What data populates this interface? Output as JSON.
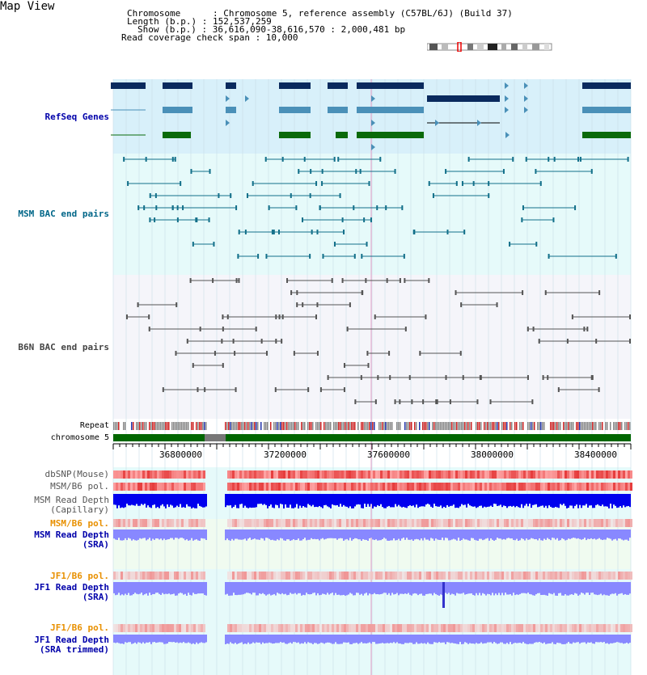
{
  "app": {
    "title": "Map View"
  },
  "header": {
    "lines": [
      "Chromosome      : Chromosome 5, reference assembly (C57BL/6J) (Build 37)",
      "Length (b.p.) : 152,537,259",
      "Show (b.p.) : 36,616,090-38,616,570 : 2,000,481 bp",
      "Read coverage check span : 10,000"
    ]
  },
  "tracks": {
    "refseq": {
      "label": "RefSeq Genes",
      "color": "#0000aa"
    },
    "msm_bac": {
      "label": "MSM BAC end pairs",
      "color": "#006688"
    },
    "b6n_bac": {
      "label": "B6N BAC end pairs",
      "color": "#444444"
    },
    "repeat": {
      "label": "Repeat"
    },
    "chromosome": {
      "label": "chromosome 5"
    },
    "dbsnp": {
      "label": "dbSNP(Mouse)"
    },
    "msm_b6_pol": {
      "label": "MSM/B6 pol."
    },
    "msm_depth_cap": {
      "label": "MSM Read Depth\n(Capillary)"
    },
    "msm_b6_pol_sra": {
      "label": "MSM/B6 pol."
    },
    "msm_depth_sra": {
      "label": "MSM Read Depth\n(SRA)"
    },
    "jf1_b6_pol": {
      "label": "JF1/B6 pol."
    },
    "jf1_depth_sra": {
      "label": "JF1 Read Depth\n(SRA)"
    },
    "jf1_b6_pol_trim": {
      "label": "JF1/B6 pol."
    },
    "jf1_depth_trim": {
      "label": "JF1 Read Depth\n(SRA trimmed)"
    }
  },
  "axis": {
    "ticks": [
      "36800000",
      "37200000",
      "37600000",
      "38000000",
      "38400000"
    ],
    "start_bp": 36616090,
    "end_bp": 38616570
  },
  "colors": {
    "refseq_bg": "#d8f0fa",
    "bac_bg": "#e6fafa",
    "b6n_bg": "#f5f5fa",
    "coverage_bg": "#e6fafa",
    "gene_dark": "#0a2a5e",
    "gene_mid": "#4a90b8",
    "gene_green": "#0a6a0a",
    "chromosome_green": "#006600",
    "pol_red": "#e83030",
    "depth_blue": "#0000ee",
    "depth_lavender": "#8888ff",
    "orange_label": "#e89000"
  }
}
